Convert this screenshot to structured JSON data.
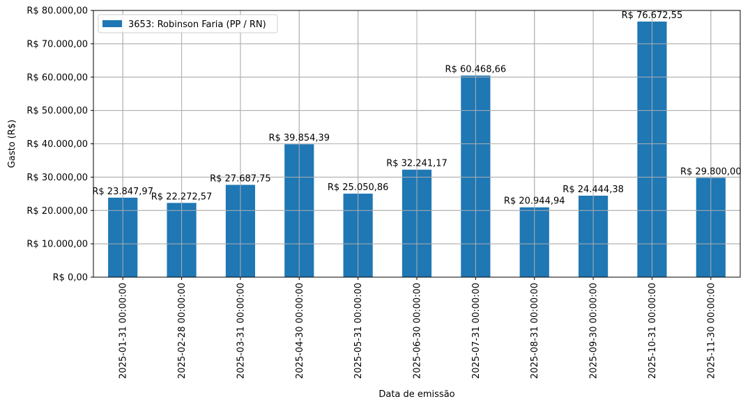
{
  "chart_data": {
    "type": "bar",
    "xlabel": "Data de emissão",
    "ylabel": "Gasto (R$)",
    "ylim": [
      0,
      80000
    ],
    "yticks": [
      0,
      10000,
      20000,
      30000,
      40000,
      50000,
      60000,
      70000,
      80000
    ],
    "ytick_labels": [
      "R$ 0,00",
      "R$ 10.000,00",
      "R$ 20.000,00",
      "R$ 30.000,00",
      "R$ 40.000,00",
      "R$ 50.000,00",
      "R$ 60.000,00",
      "R$ 70.000,00",
      "R$ 80.000,00"
    ],
    "grid": true,
    "legend_position": "top-left",
    "categories": [
      "2025-01-31 00:00:00",
      "2025-02-28 00:00:00",
      "2025-03-31 00:00:00",
      "2025-04-30 00:00:00",
      "2025-05-31 00:00:00",
      "2025-06-30 00:00:00",
      "2025-07-31 00:00:00",
      "2025-08-31 00:00:00",
      "2025-09-30 00:00:00",
      "2025-10-31 00:00:00",
      "2025-11-30 00:00:00"
    ],
    "series": [
      {
        "name": "3653: Robinson Faria (PP / RN)",
        "color": "#1f77b4",
        "values": [
          23847.97,
          22272.57,
          27687.75,
          39854.39,
          25050.86,
          32241.17,
          60468.66,
          20944.94,
          24444.38,
          76672.55,
          29800.0
        ],
        "labels": [
          "R$ 23.847,97",
          "R$ 22.272,57",
          "R$ 27.687,75",
          "R$ 39.854,39",
          "R$ 25.050,86",
          "R$ 32.241,17",
          "R$ 60.468,66",
          "R$ 20.944,94",
          "R$ 24.444,38",
          "R$ 76.672,55",
          "R$ 29.800,00"
        ]
      }
    ]
  }
}
